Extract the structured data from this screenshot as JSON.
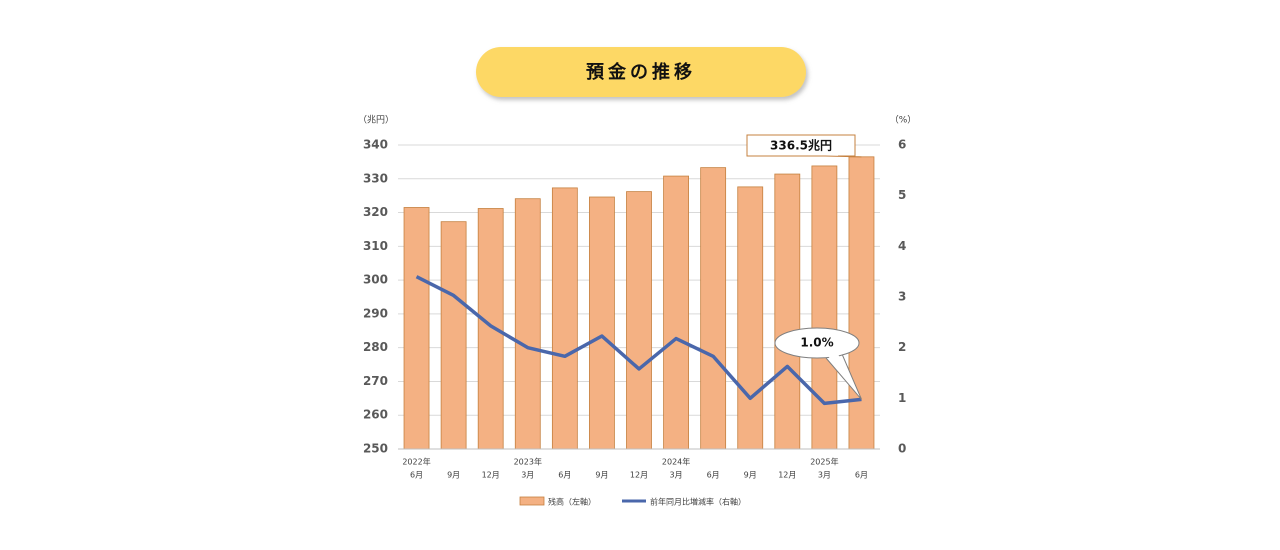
{
  "chart_data": {
    "type": "bar-line",
    "title": "預金の推移",
    "y_label": "（兆円）",
    "y2_label": "（%）",
    "categories": [
      "6月",
      "9月",
      "12月",
      "3月",
      "6月",
      "9月",
      "12月",
      "3月",
      "6月",
      "9月",
      "12月",
      "3月",
      "6月"
    ],
    "year_labels": [
      "2022年",
      null,
      null,
      "2023年",
      null,
      null,
      null,
      "2024年",
      null,
      null,
      null,
      "2025年",
      null
    ],
    "series": [
      {
        "name": "残高（左軸）",
        "type": "bar",
        "color": "#f4b183",
        "axis": "y",
        "values": [
          321.5,
          317.3,
          321.2,
          324.1,
          327.3,
          324.6,
          326.2,
          330.8,
          333.3,
          327.6,
          331.4,
          333.8,
          336.5
        ],
        "value_labels": [
          null,
          null,
          null,
          null,
          null,
          null,
          null,
          null,
          null,
          null,
          null,
          null,
          "336.5兆円"
        ]
      },
      {
        "name": "前年同月比増減率（右軸）",
        "type": "line",
        "color": "#4a67ab",
        "axis": "y2",
        "values": [
          3.4,
          3.03,
          2.43,
          2.0,
          1.83,
          2.23,
          1.58,
          2.18,
          1.83,
          1.0,
          1.63,
          0.9,
          0.98
        ],
        "value_labels": [
          null,
          null,
          null,
          null,
          null,
          null,
          null,
          null,
          null,
          null,
          null,
          null,
          "1.0%"
        ]
      }
    ],
    "ylim": [
      250,
      340
    ],
    "yticks": [
      250,
      260,
      270,
      280,
      290,
      300,
      310,
      320,
      330,
      340
    ],
    "y2lim": [
      0,
      6
    ],
    "y2ticks": [
      0,
      1,
      2,
      3,
      4,
      5,
      6
    ],
    "grid": true
  }
}
